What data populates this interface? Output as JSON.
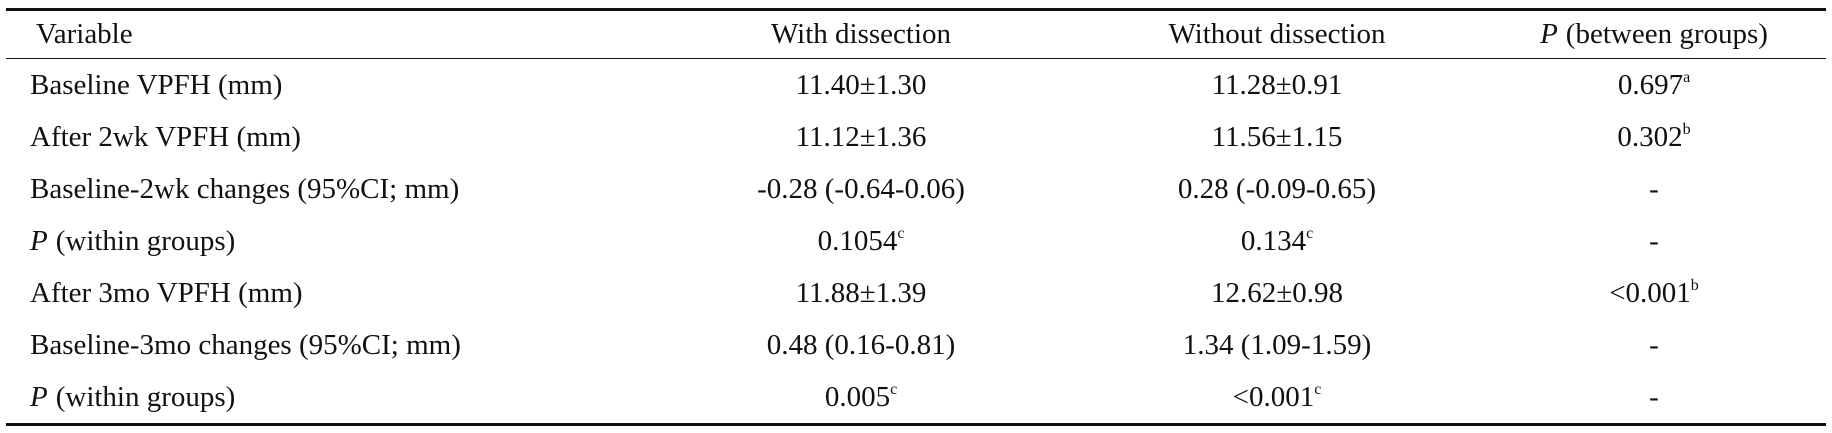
{
  "table": {
    "header": [
      "Variable",
      "With dissection",
      "Without dissection",
      {
        "italic": "P",
        "text": "(between groups)"
      }
    ],
    "rows": [
      [
        "Baseline VPFH (mm)",
        "11.40±1.30",
        "11.28±0.91",
        {
          "text": "0.697",
          "sup": "a"
        }
      ],
      [
        "After 2wk VPFH (mm)",
        "11.12±1.36",
        "11.56±1.15",
        {
          "text": "0.302",
          "sup": "b"
        }
      ],
      [
        "Baseline-2wk changes (95%CI; mm)",
        "-0.28 (-0.64-0.06)",
        "0.28 (-0.09-0.65)",
        "-"
      ],
      [
        {
          "italic": "P",
          "text": "(within groups)"
        },
        {
          "text": "0.1054",
          "sup": "c"
        },
        {
          "text": "0.134",
          "sup": "c"
        },
        "-"
      ],
      [
        "After 3mo VPFH (mm)",
        "11.88±1.39",
        "12.62±0.98",
        {
          "text": "<0.001",
          "sup": "b"
        }
      ],
      [
        "Baseline-3mo changes (95%CI; mm)",
        "0.48 (0.16-0.81)",
        "1.34 (1.09-1.59)",
        "-"
      ],
      [
        {
          "italic": "P",
          "text": "(within groups)"
        },
        {
          "text": "0.005",
          "sup": "c"
        },
        {
          "text": "<0.001",
          "sup": "c"
        },
        "-"
      ]
    ]
  }
}
